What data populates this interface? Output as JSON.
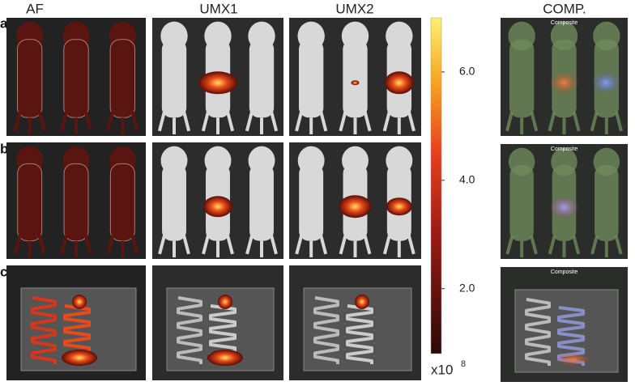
{
  "headers": [
    "AF",
    "UMX1",
    "UMX2",
    "COMP."
  ],
  "rows": [
    "a",
    "b",
    "c"
  ],
  "composite_labels": [
    "Composite",
    "Composite",
    "Composite"
  ],
  "colorbar": {
    "lim": [
      0.8,
      7
    ],
    "ticks": [
      {
        "value": 2,
        "label": "2.0"
      },
      {
        "value": 4,
        "label": "4.0"
      },
      {
        "value": 6,
        "label": "6.0"
      }
    ],
    "multiplier": "x10",
    "exponent": "8"
  }
}
